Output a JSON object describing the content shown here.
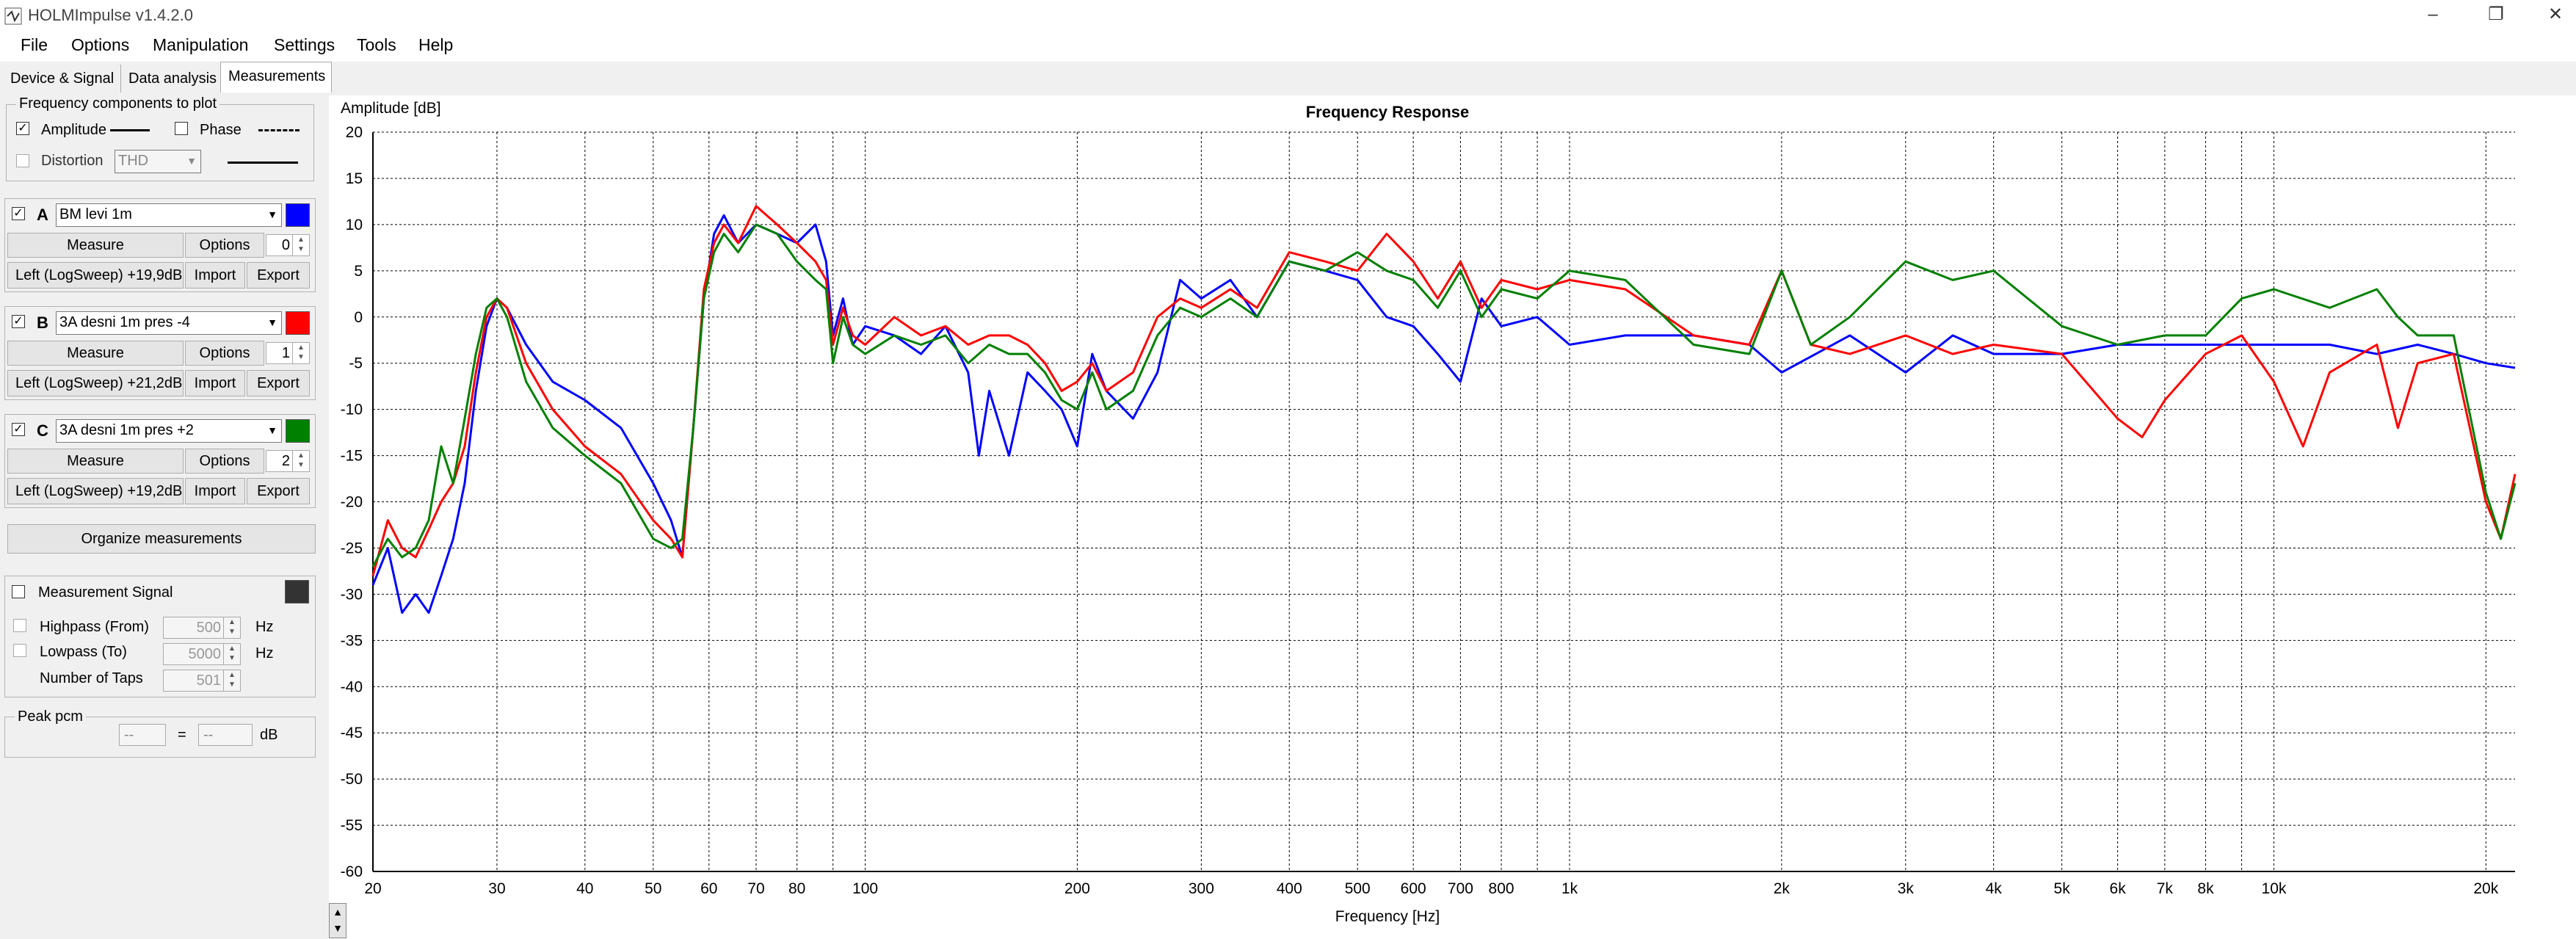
{
  "window": {
    "title": "HOLMImpulse  v1.4.2.0"
  },
  "menu": [
    "File",
    "Options",
    "Manipulation",
    "Settings",
    "Tools",
    "Help"
  ],
  "tabs": [
    "Device & Signal",
    "Data analysis",
    "Measurements"
  ],
  "active_tab": "Measurements",
  "freq_components": {
    "title": "Frequency components to plot",
    "amplitude_label": "Amplitude",
    "amplitude_checked": true,
    "phase_label": "Phase",
    "phase_checked": false,
    "distortion_label": "Distortion",
    "distortion_checked": false,
    "distortion_select": "THD"
  },
  "measurements": [
    {
      "letter": "A",
      "checked": true,
      "name": "BM levi 1m",
      "color": "#0000ff",
      "measure_label": "Measure",
      "options_label": "Options",
      "offset": "0",
      "info": "Left (LogSweep) +19,9dB",
      "import_label": "Import",
      "export_label": "Export"
    },
    {
      "letter": "B",
      "checked": true,
      "name": "3A desni 1m pres -4",
      "color": "#ff0000",
      "measure_label": "Measure",
      "options_label": "Options",
      "offset": "1",
      "info": "Left (LogSweep) +21,2dB",
      "import_label": "Import",
      "export_label": "Export"
    },
    {
      "letter": "C",
      "checked": true,
      "name": "3A desni 1m pres +2",
      "color": "#008000",
      "measure_label": "Measure",
      "options_label": "Options",
      "offset": "2",
      "info": "Left (LogSweep) +19,2dB",
      "import_label": "Import",
      "export_label": "Export"
    }
  ],
  "organize_label": "Organize measurements",
  "signal": {
    "label": "Measurement Signal",
    "checked": false,
    "color": "#333333",
    "highpass_label": "Highpass (From)",
    "highpass_value": "500",
    "lowpass_label": "Lowpass (To)",
    "lowpass_value": "5000",
    "unit_hz": "Hz",
    "taps_label": "Number of Taps",
    "taps_value": "501"
  },
  "peak": {
    "title": "Peak pcm",
    "value1": "--",
    "equals": "=",
    "value2": "--",
    "unit": "dB"
  },
  "chart_data": {
    "type": "line",
    "title": "Frequency Response",
    "xlabel": "Frequency [Hz]",
    "ylabel": "Amplitude [dB]",
    "x_scale": "log",
    "xlim": [
      20,
      22000
    ],
    "ylim": [
      -60,
      20
    ],
    "grid": true,
    "y_ticks": [
      20,
      15,
      10,
      5,
      0,
      -5,
      -10,
      -15,
      -20,
      -25,
      -30,
      -35,
      -40,
      -45,
      -50,
      -55,
      -60
    ],
    "x_ticks": [
      {
        "v": 20,
        "label": "20"
      },
      {
        "v": 30,
        "label": "30"
      },
      {
        "v": 40,
        "label": "40"
      },
      {
        "v": 50,
        "label": "50"
      },
      {
        "v": 60,
        "label": "60"
      },
      {
        "v": 70,
        "label": "70"
      },
      {
        "v": 80,
        "label": "80"
      },
      {
        "v": 100,
        "label": "100"
      },
      {
        "v": 200,
        "label": "200"
      },
      {
        "v": 300,
        "label": "300"
      },
      {
        "v": 400,
        "label": "400"
      },
      {
        "v": 500,
        "label": "500"
      },
      {
        "v": 600,
        "label": "600"
      },
      {
        "v": 700,
        "label": "700"
      },
      {
        "v": 800,
        "label": "800"
      },
      {
        "v": 1000,
        "label": "1k"
      },
      {
        "v": 2000,
        "label": "2k"
      },
      {
        "v": 3000,
        "label": "3k"
      },
      {
        "v": 4000,
        "label": "4k"
      },
      {
        "v": 5000,
        "label": "5k"
      },
      {
        "v": 6000,
        "label": "6k"
      },
      {
        "v": 7000,
        "label": "7k"
      },
      {
        "v": 8000,
        "label": "8k"
      },
      {
        "v": 10000,
        "label": "10k"
      },
      {
        "v": 20000,
        "label": "20k"
      }
    ],
    "series": [
      {
        "color": "#0000ff",
        "points": [
          [
            20,
            -29
          ],
          [
            21,
            -25
          ],
          [
            22,
            -32
          ],
          [
            23,
            -30
          ],
          [
            24,
            -32
          ],
          [
            25,
            -28
          ],
          [
            26,
            -24
          ],
          [
            27,
            -18
          ],
          [
            28,
            -8
          ],
          [
            29,
            -1
          ],
          [
            30,
            2
          ],
          [
            31,
            1
          ],
          [
            33,
            -3
          ],
          [
            36,
            -7
          ],
          [
            40,
            -9
          ],
          [
            45,
            -12
          ],
          [
            50,
            -18
          ],
          [
            53,
            -22
          ],
          [
            55,
            -26
          ],
          [
            57,
            -12
          ],
          [
            59,
            2
          ],
          [
            61,
            9
          ],
          [
            63,
            11
          ],
          [
            66,
            8
          ],
          [
            70,
            10
          ],
          [
            75,
            9
          ],
          [
            80,
            8
          ],
          [
            85,
            10
          ],
          [
            88,
            6
          ],
          [
            90,
            -2
          ],
          [
            93,
            2
          ],
          [
            96,
            -3
          ],
          [
            100,
            -1
          ],
          [
            110,
            -2
          ],
          [
            120,
            -4
          ],
          [
            130,
            -1
          ],
          [
            140,
            -6
          ],
          [
            145,
            -15
          ],
          [
            150,
            -8
          ],
          [
            160,
            -15
          ],
          [
            170,
            -6
          ],
          [
            180,
            -8
          ],
          [
            190,
            -10
          ],
          [
            200,
            -14
          ],
          [
            210,
            -4
          ],
          [
            220,
            -8
          ],
          [
            240,
            -11
          ],
          [
            260,
            -6
          ],
          [
            280,
            4
          ],
          [
            300,
            2
          ],
          [
            330,
            4
          ],
          [
            360,
            0
          ],
          [
            400,
            6
          ],
          [
            450,
            5
          ],
          [
            500,
            4
          ],
          [
            550,
            0
          ],
          [
            600,
            -1
          ],
          [
            650,
            -4
          ],
          [
            700,
            -7
          ],
          [
            750,
            2
          ],
          [
            800,
            -1
          ],
          [
            900,
            0
          ],
          [
            1000,
            -3
          ],
          [
            1200,
            -2
          ],
          [
            1500,
            -2
          ],
          [
            1800,
            -3
          ],
          [
            2000,
            -6
          ],
          [
            2500,
            -2
          ],
          [
            3000,
            -6
          ],
          [
            3500,
            -2
          ],
          [
            4000,
            -4
          ],
          [
            5000,
            -4
          ],
          [
            6000,
            -3
          ],
          [
            7000,
            -3
          ],
          [
            8000,
            -3
          ],
          [
            10000,
            -3
          ],
          [
            12000,
            -3
          ],
          [
            14000,
            -4
          ],
          [
            16000,
            -3
          ],
          [
            18000,
            -4
          ],
          [
            20000,
            -5
          ],
          [
            22000,
            -5.5
          ]
        ]
      },
      {
        "color": "#ff0000",
        "points": [
          [
            20,
            -28
          ],
          [
            21,
            -22
          ],
          [
            22,
            -25
          ],
          [
            23,
            -26
          ],
          [
            24,
            -23
          ],
          [
            25,
            -20
          ],
          [
            26,
            -18
          ],
          [
            27,
            -14
          ],
          [
            28,
            -6
          ],
          [
            29,
            0
          ],
          [
            30,
            2
          ],
          [
            31,
            1
          ],
          [
            33,
            -5
          ],
          [
            36,
            -10
          ],
          [
            40,
            -14
          ],
          [
            45,
            -17
          ],
          [
            50,
            -22
          ],
          [
            53,
            -24
          ],
          [
            55,
            -26
          ],
          [
            57,
            -12
          ],
          [
            59,
            3
          ],
          [
            61,
            8
          ],
          [
            63,
            10
          ],
          [
            66,
            8
          ],
          [
            70,
            12
          ],
          [
            75,
            10
          ],
          [
            80,
            8
          ],
          [
            85,
            6
          ],
          [
            88,
            4
          ],
          [
            90,
            -3
          ],
          [
            93,
            1
          ],
          [
            96,
            -2
          ],
          [
            100,
            -3
          ],
          [
            110,
            0
          ],
          [
            120,
            -2
          ],
          [
            130,
            -1
          ],
          [
            140,
            -3
          ],
          [
            150,
            -2
          ],
          [
            160,
            -2
          ],
          [
            170,
            -3
          ],
          [
            180,
            -5
          ],
          [
            190,
            -8
          ],
          [
            200,
            -7
          ],
          [
            210,
            -5
          ],
          [
            220,
            -8
          ],
          [
            240,
            -6
          ],
          [
            260,
            0
          ],
          [
            280,
            2
          ],
          [
            300,
            1
          ],
          [
            330,
            3
          ],
          [
            360,
            1
          ],
          [
            400,
            7
          ],
          [
            450,
            6
          ],
          [
            500,
            5
          ],
          [
            550,
            9
          ],
          [
            600,
            6
          ],
          [
            650,
            2
          ],
          [
            700,
            6
          ],
          [
            750,
            1
          ],
          [
            800,
            4
          ],
          [
            900,
            3
          ],
          [
            1000,
            4
          ],
          [
            1200,
            3
          ],
          [
            1500,
            -2
          ],
          [
            1800,
            -3
          ],
          [
            2000,
            5
          ],
          [
            2200,
            -3
          ],
          [
            2500,
            -4
          ],
          [
            3000,
            -2
          ],
          [
            3500,
            -4
          ],
          [
            4000,
            -3
          ],
          [
            5000,
            -4
          ],
          [
            6000,
            -11
          ],
          [
            6500,
            -13
          ],
          [
            7000,
            -9
          ],
          [
            8000,
            -4
          ],
          [
            9000,
            -2
          ],
          [
            10000,
            -7
          ],
          [
            11000,
            -14
          ],
          [
            12000,
            -6
          ],
          [
            14000,
            -3
          ],
          [
            15000,
            -12
          ],
          [
            16000,
            -5
          ],
          [
            18000,
            -4
          ],
          [
            20000,
            -20
          ],
          [
            21000,
            -24
          ],
          [
            22000,
            -17
          ]
        ]
      },
      {
        "color": "#008000",
        "points": [
          [
            20,
            -27
          ],
          [
            21,
            -24
          ],
          [
            22,
            -26
          ],
          [
            23,
            -25
          ],
          [
            24,
            -22
          ],
          [
            25,
            -14
          ],
          [
            26,
            -18
          ],
          [
            27,
            -11
          ],
          [
            28,
            -4
          ],
          [
            29,
            1
          ],
          [
            30,
            2
          ],
          [
            31,
            0
          ],
          [
            33,
            -7
          ],
          [
            36,
            -12
          ],
          [
            40,
            -15
          ],
          [
            45,
            -18
          ],
          [
            50,
            -24
          ],
          [
            53,
            -25
          ],
          [
            55,
            -24
          ],
          [
            57,
            -12
          ],
          [
            59,
            2
          ],
          [
            61,
            7
          ],
          [
            63,
            9
          ],
          [
            66,
            7
          ],
          [
            70,
            10
          ],
          [
            75,
            9
          ],
          [
            80,
            6
          ],
          [
            85,
            4
          ],
          [
            88,
            3
          ],
          [
            90,
            -5
          ],
          [
            93,
            0
          ],
          [
            96,
            -3
          ],
          [
            100,
            -4
          ],
          [
            110,
            -2
          ],
          [
            120,
            -3
          ],
          [
            130,
            -2
          ],
          [
            140,
            -5
          ],
          [
            150,
            -3
          ],
          [
            160,
            -4
          ],
          [
            170,
            -4
          ],
          [
            180,
            -6
          ],
          [
            190,
            -9
          ],
          [
            200,
            -10
          ],
          [
            210,
            -6
          ],
          [
            220,
            -10
          ],
          [
            240,
            -8
          ],
          [
            260,
            -2
          ],
          [
            280,
            1
          ],
          [
            300,
            0
          ],
          [
            330,
            2
          ],
          [
            360,
            0
          ],
          [
            400,
            6
          ],
          [
            450,
            5
          ],
          [
            500,
            7
          ],
          [
            550,
            5
          ],
          [
            600,
            4
          ],
          [
            650,
            1
          ],
          [
            700,
            5
          ],
          [
            750,
            0
          ],
          [
            800,
            3
          ],
          [
            900,
            2
          ],
          [
            1000,
            5
          ],
          [
            1200,
            4
          ],
          [
            1500,
            -3
          ],
          [
            1800,
            -4
          ],
          [
            2000,
            5
          ],
          [
            2200,
            -3
          ],
          [
            2500,
            0
          ],
          [
            3000,
            6
          ],
          [
            3500,
            4
          ],
          [
            4000,
            5
          ],
          [
            5000,
            -1
          ],
          [
            6000,
            -3
          ],
          [
            7000,
            -2
          ],
          [
            8000,
            -2
          ],
          [
            9000,
            2
          ],
          [
            10000,
            3
          ],
          [
            12000,
            1
          ],
          [
            14000,
            3
          ],
          [
            15000,
            0
          ],
          [
            16000,
            -2
          ],
          [
            18000,
            -2
          ],
          [
            20000,
            -19
          ],
          [
            21000,
            -24
          ],
          [
            22000,
            -18
          ]
        ]
      }
    ]
  }
}
